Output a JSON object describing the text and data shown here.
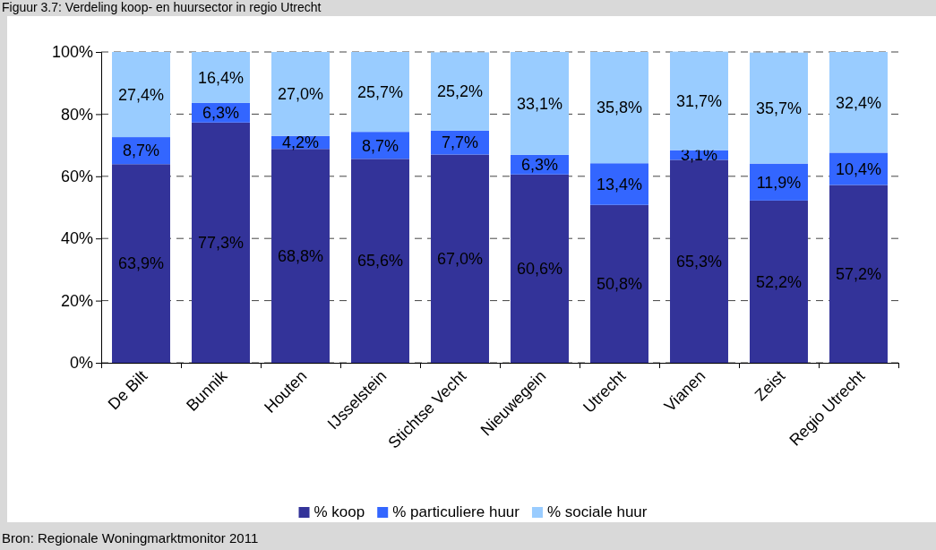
{
  "chart_data": {
    "type": "bar",
    "stacked": true,
    "title": "Figuur 3.7: Verdeling koop- en huursector in regio Utrecht",
    "categories": [
      "De Bilt",
      "Bunnik",
      "Houten",
      "IJsselstein",
      "Stichtse Vecht",
      "Nieuwegein",
      "Utrecht",
      "Vianen",
      "Zeist",
      "Regio Utrecht"
    ],
    "series": [
      {
        "name": "% koop",
        "color": "#333399",
        "values": [
          63.9,
          77.3,
          68.8,
          65.6,
          67.0,
          60.6,
          50.8,
          65.3,
          52.2,
          57.2
        ],
        "value_labels": [
          "63,9%",
          "77,3%",
          "68,8%",
          "65,6%",
          "67,0%",
          "60,6%",
          "50,8%",
          "65,3%",
          "52,2%",
          "57,2%"
        ]
      },
      {
        "name": "% particuliere huur",
        "color": "#3366ff",
        "values": [
          8.7,
          6.3,
          4.2,
          8.7,
          7.7,
          6.3,
          13.4,
          3.1,
          11.9,
          10.4
        ],
        "value_labels": [
          "8,7%",
          "6,3%",
          "4,2%",
          "8,7%",
          "7,7%",
          "6,3%",
          "13,4%",
          "3,1%",
          "11,9%",
          "10,4%"
        ]
      },
      {
        "name": "% sociale huur",
        "color": "#99ccff",
        "values": [
          27.4,
          16.4,
          27.0,
          25.7,
          25.2,
          33.1,
          35.8,
          31.7,
          35.7,
          32.4
        ],
        "value_labels": [
          "27,4%",
          "16,4%",
          "27,0%",
          "25,7%",
          "25,2%",
          "33,1%",
          "35,8%",
          "31,7%",
          "35,7%",
          "32,4%"
        ]
      }
    ],
    "ylim": [
      0,
      100
    ],
    "yticks": [
      {
        "value": 0,
        "label": "0%"
      },
      {
        "value": 20,
        "label": "20%"
      },
      {
        "value": 40,
        "label": "40%"
      },
      {
        "value": 60,
        "label": "60%"
      },
      {
        "value": 80,
        "label": "80%"
      },
      {
        "value": 100,
        "label": "100%"
      }
    ],
    "grid": "y",
    "legend": "bottom",
    "annotations": [
      "Bron: Regionale Woningmarktmonitor 2011"
    ]
  }
}
